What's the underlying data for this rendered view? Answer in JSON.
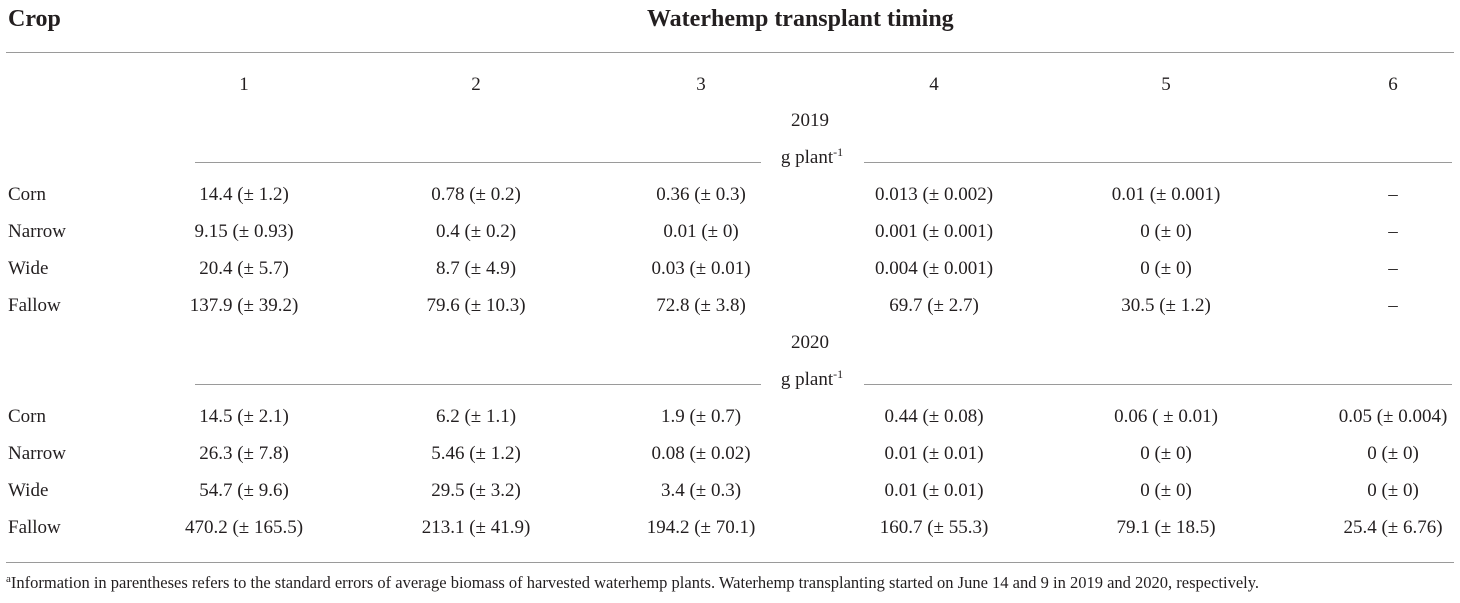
{
  "header": {
    "crop_label": "Crop",
    "timing_label": "Waterhemp transplant timing"
  },
  "columns": [
    "1",
    "2",
    "3",
    "4",
    "5",
    "6"
  ],
  "sections": [
    {
      "year": "2019",
      "unit_text": "g plant",
      "unit_exp": "-1",
      "rows": [
        {
          "crop": "Corn",
          "values": [
            "14.4 (± 1.2)",
            "0.78 (± 0.2)",
            "0.36 (± 0.3)",
            "0.013 (± 0.002)",
            "0.01 (± 0.001)",
            "–"
          ]
        },
        {
          "crop": "Narrow",
          "values": [
            "9.15 (± 0.93)",
            "0.4 (± 0.2)",
            "0.01 (± 0)",
            "0.001 (± 0.001)",
            "0 (± 0)",
            "–"
          ]
        },
        {
          "crop": "Wide",
          "values": [
            "20.4 (± 5.7)",
            "8.7 (± 4.9)",
            "0.03 (± 0.01)",
            "0.004 (± 0.001)",
            "0 (± 0)",
            "–"
          ]
        },
        {
          "crop": "Fallow",
          "values": [
            "137.9 (± 39.2)",
            "79.6 (± 10.3)",
            "72.8 (± 3.8)",
            "69.7 (± 2.7)",
            "30.5 (± 1.2)",
            "–"
          ]
        }
      ]
    },
    {
      "year": "2020",
      "unit_text": "g plant",
      "unit_exp": "-1",
      "rows": [
        {
          "crop": "Corn",
          "values": [
            "14.5 (± 2.1)",
            "6.2 (± 1.1)",
            "1.9 (± 0.7)",
            "0.44 (± 0.08)",
            "0.06 ( ± 0.01)",
            "0.05 (± 0.004)"
          ]
        },
        {
          "crop": "Narrow",
          "values": [
            "26.3 (± 7.8)",
            "5.46 (± 1.2)",
            "0.08 (± 0.02)",
            "0.01 (± 0.01)",
            "0 (± 0)",
            "0 (± 0)"
          ]
        },
        {
          "crop": "Wide",
          "values": [
            "54.7 (± 9.6)",
            "29.5 (± 3.2)",
            "3.4 (± 0.3)",
            "0.01 (± 0.01)",
            "0 (± 0)",
            "0 (± 0)"
          ]
        },
        {
          "crop": "Fallow",
          "values": [
            "470.2 (± 165.5)",
            "213.1 (± 41.9)",
            "194.2 (± 70.1)",
            "160.7 (± 55.3)",
            "79.1 (± 18.5)",
            "25.4 (± 6.76)"
          ]
        }
      ]
    }
  ],
  "footnote": {
    "marker": "a",
    "text": "Information in parentheses refers to the standard errors of average biomass of harvested waterhemp plants. Waterhemp transplanting started on June 14 and 9 in 2019 and 2020, respectively."
  }
}
